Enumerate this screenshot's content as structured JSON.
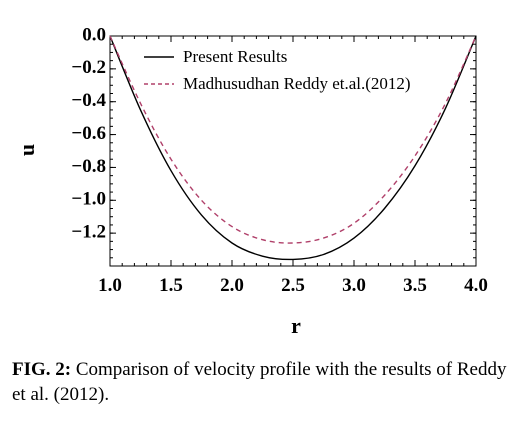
{
  "chart_data": {
    "type": "line",
    "xlabel": "r",
    "ylabel": "u",
    "xlim": [
      1.0,
      4.0
    ],
    "ylim": [
      -1.4,
      0.0
    ],
    "x_ticks": [
      "1.0",
      "1.5",
      "2.0",
      "2.5",
      "3.0",
      "3.5",
      "4.0"
    ],
    "y_ticks": [
      "0.0",
      "−0.2",
      "−0.4",
      "−0.6",
      "−0.8",
      "−1.0",
      "−1.2"
    ],
    "legend_position": "top-center",
    "grid": false,
    "x": [
      1.0,
      1.25,
      1.5,
      1.75,
      2.0,
      2.25,
      2.5,
      2.75,
      3.0,
      3.25,
      3.5,
      3.75,
      4.0
    ],
    "series": [
      {
        "name": "Present Results",
        "style": "solid",
        "color": "#000000",
        "values": [
          0.0,
          -0.45,
          -0.82,
          -1.09,
          -1.26,
          -1.34,
          -1.36,
          -1.33,
          -1.23,
          -1.05,
          -0.79,
          -0.44,
          0.0
        ]
      },
      {
        "name": "Madhusudhan Reddy et.al.(2012)",
        "style": "dashed",
        "color": "#b0406a",
        "values": [
          0.0,
          -0.41,
          -0.75,
          -1.0,
          -1.16,
          -1.24,
          -1.26,
          -1.23,
          -1.14,
          -0.97,
          -0.73,
          -0.41,
          0.0
        ]
      }
    ]
  },
  "caption": {
    "label": "FIG. 2:",
    "text": " Comparison of velocity profile with the results of Reddy et al. (2012)."
  }
}
